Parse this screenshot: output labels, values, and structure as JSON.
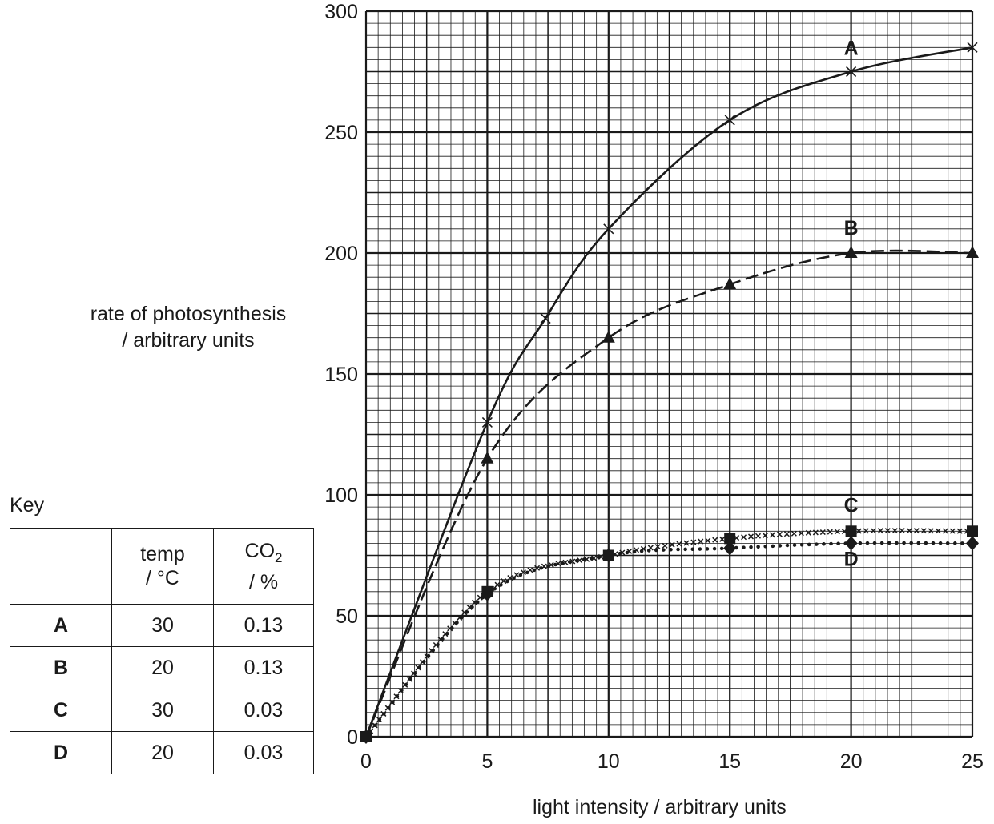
{
  "chart_data": {
    "type": "line",
    "xlabel": "light intensity / arbitrary units",
    "ylabel_line1": "rate of photosynthesis",
    "ylabel_line2": "/ arbitrary units",
    "xlim": [
      0,
      25
    ],
    "ylim": [
      0,
      300
    ],
    "x_ticks": [
      0,
      5,
      10,
      15,
      20,
      25
    ],
    "y_ticks": [
      0,
      50,
      100,
      150,
      200,
      250,
      300
    ],
    "grid": true,
    "series": [
      {
        "name": "A",
        "line_style": "solid",
        "marker": "cross",
        "x": [
          0,
          5,
          7.4,
          10,
          15,
          20,
          25
        ],
        "y": [
          0,
          130,
          173,
          210,
          255,
          275,
          285
        ]
      },
      {
        "name": "B",
        "line_style": "dashed",
        "marker": "triangle",
        "x": [
          0,
          5,
          10,
          15,
          20,
          25
        ],
        "y": [
          0,
          115,
          165,
          187,
          200,
          200
        ]
      },
      {
        "name": "C",
        "line_style": "crosses",
        "marker": "square",
        "x": [
          0,
          5,
          10,
          15,
          20,
          25
        ],
        "y": [
          0,
          60,
          75,
          82,
          85,
          85
        ]
      },
      {
        "name": "D",
        "line_style": "dotted",
        "marker": "diamond",
        "x": [
          0,
          5,
          10,
          15,
          20,
          25
        ],
        "y": [
          0,
          59,
          75,
          78,
          80,
          80
        ]
      }
    ]
  },
  "key": {
    "title": "Key",
    "header_temp_1": "temp",
    "header_temp_2": "/ °C",
    "header_co2_1": "CO",
    "header_co2_sub": "2",
    "header_co2_2": "/ %",
    "rows": [
      {
        "label": "A",
        "temp": "30",
        "co2": "0.13"
      },
      {
        "label": "B",
        "temp": "20",
        "co2": "0.13"
      },
      {
        "label": "C",
        "temp": "30",
        "co2": "0.03"
      },
      {
        "label": "D",
        "temp": "20",
        "co2": "0.03"
      }
    ]
  },
  "colors": {
    "ink": "#1a1a1a",
    "background": "#ffffff"
  }
}
